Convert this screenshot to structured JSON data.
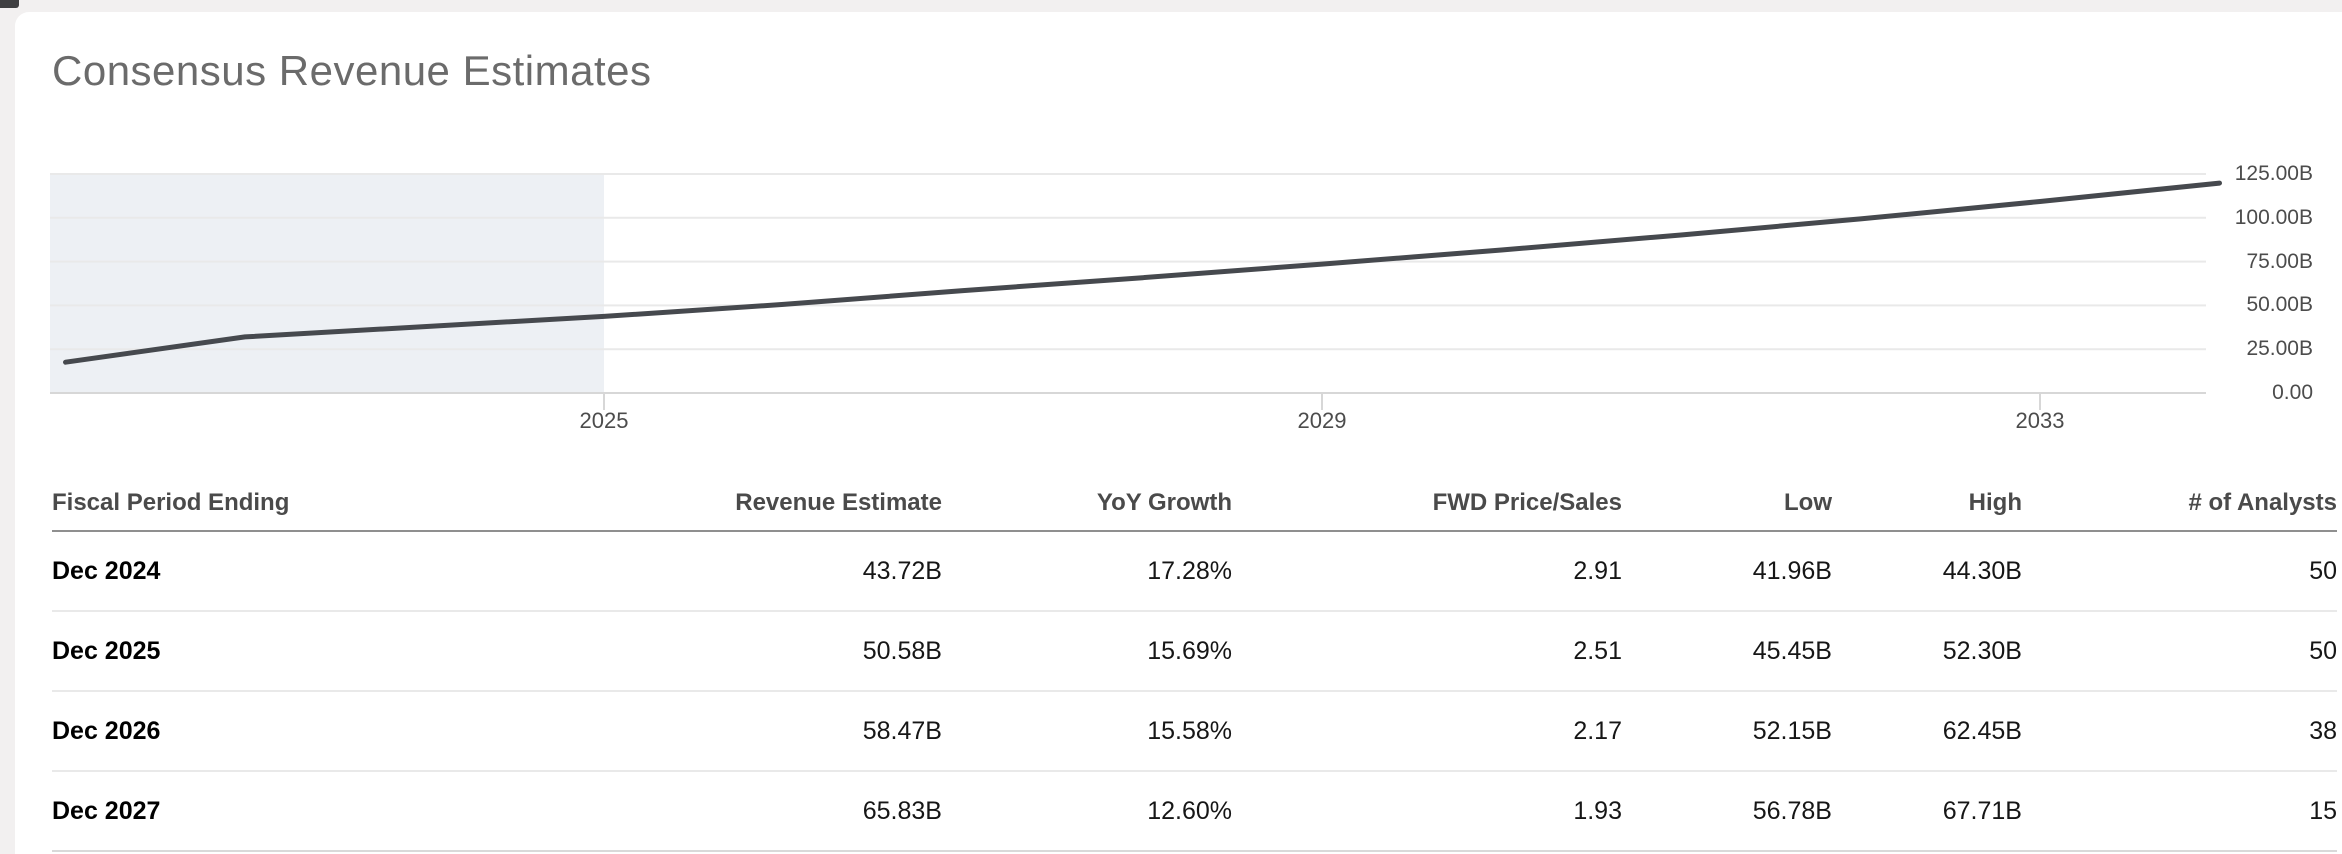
{
  "section": {
    "title": "Consensus Revenue Estimates"
  },
  "colors": {
    "line": "#46494e",
    "historical_shade": "#edf0f4",
    "gridline": "#e9e9e9",
    "axis": "#d7d7d7",
    "title_text": "#6b6b6b"
  },
  "chart_data": {
    "type": "line",
    "title": "Consensus Revenue Estimates",
    "unit": "USD billions",
    "xlabel": "",
    "ylabel": "",
    "x_note": "fiscal years ending Dec, plotted at year end",
    "x": [
      2021,
      2022,
      2023,
      2024,
      2025,
      2026,
      2027,
      2028,
      2029,
      2030,
      2031,
      2032,
      2033
    ],
    "series": [
      {
        "name": "Consensus Revenue Estimate",
        "values": [
          17.6,
          32.0,
          37.9,
          43.72,
          50.58,
          58.47,
          65.83,
          73.6,
          81.6,
          90.2,
          99.4,
          109.3,
          119.8
        ]
      }
    ],
    "x_ticks": [
      {
        "label": "2025",
        "year": 2025
      },
      {
        "label": "2029",
        "year": 2029
      },
      {
        "label": "2033",
        "year": 2033
      }
    ],
    "y_ticks": [
      {
        "label": "125.00B",
        "value": 125
      },
      {
        "label": "100.00B",
        "value": 100
      },
      {
        "label": "75.00B",
        "value": 75
      },
      {
        "label": "50.00B",
        "value": 50
      },
      {
        "label": "25.00B",
        "value": 25
      },
      {
        "label": "0.00",
        "value": 0
      }
    ],
    "ylim": [
      0,
      125
    ],
    "grid": true,
    "legend": false,
    "shaded_region": {
      "meaning": "historical period",
      "end_at_year_start": 2025
    }
  },
  "table": {
    "headers": [
      "Fiscal Period Ending",
      "Revenue Estimate",
      "YoY Growth",
      "FWD Price/Sales",
      "Low",
      "High",
      "# of Analysts"
    ],
    "rows": [
      [
        "Dec 2024",
        "43.72B",
        "17.28%",
        "2.91",
        "41.96B",
        "44.30B",
        "50"
      ],
      [
        "Dec 2025",
        "50.58B",
        "15.69%",
        "2.51",
        "45.45B",
        "52.30B",
        "50"
      ],
      [
        "Dec 2026",
        "58.47B",
        "15.58%",
        "2.17",
        "52.15B",
        "62.45B",
        "38"
      ],
      [
        "Dec 2027",
        "65.83B",
        "12.60%",
        "1.93",
        "56.78B",
        "67.71B",
        "15"
      ]
    ]
  }
}
